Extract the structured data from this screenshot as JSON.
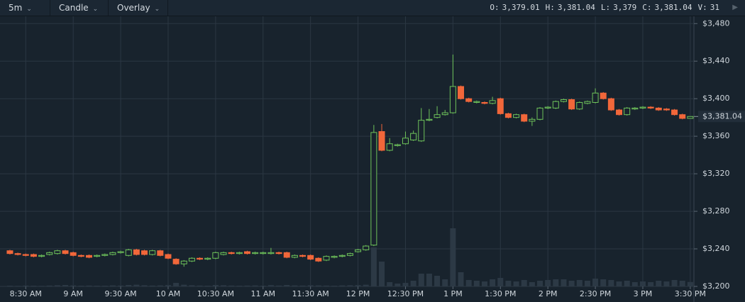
{
  "header": {
    "interval": "5m",
    "chart_type": "Candle",
    "overlay": "Overlay",
    "stats": [
      {
        "label": "O:",
        "value": "3,379.01"
      },
      {
        "label": "H:",
        "value": "3,381.04"
      },
      {
        "label": "L:",
        "value": "3,379"
      },
      {
        "label": "C:",
        "value": "3,381.04"
      },
      {
        "label": "V:",
        "value": "31"
      }
    ]
  },
  "chart_data": {
    "type": "candlestick",
    "categories": [
      null,
      null,
      "8:30 AM",
      null,
      null,
      null,
      null,
      null,
      "9 AM",
      null,
      null,
      null,
      null,
      null,
      "9:30 AM",
      null,
      null,
      null,
      null,
      null,
      "10 AM",
      null,
      null,
      null,
      null,
      null,
      "10:30 AM",
      null,
      null,
      null,
      null,
      null,
      "11 AM",
      null,
      null,
      null,
      null,
      null,
      "11:30 AM",
      null,
      null,
      null,
      null,
      null,
      "12 PM",
      null,
      null,
      null,
      null,
      null,
      "12:30 PM",
      null,
      null,
      null,
      null,
      null,
      "1 PM",
      null,
      null,
      null,
      null,
      null,
      "1:30 PM",
      null,
      null,
      null,
      null,
      null,
      "2 PM",
      null,
      null,
      null,
      null,
      null,
      "2:30 PM",
      null,
      null,
      null,
      null,
      null,
      "3 PM",
      null,
      null,
      null,
      null,
      null,
      "3:30 PM"
    ],
    "open": [
      3238,
      3235,
      3234,
      3234,
      3232,
      3234,
      3235,
      3238,
      3236,
      3233,
      3233,
      3232,
      3233,
      3234,
      3236,
      3233,
      3239,
      3238,
      3234,
      3238,
      3234,
      3229,
      3224,
      3227,
      3230,
      3229,
      3230,
      3234,
      3236,
      3235,
      3237,
      3235,
      3235,
      3235,
      3236,
      3236,
      3231,
      3233,
      3233,
      3230,
      3228,
      3231,
      3232,
      3233,
      3237,
      3239,
      3244,
      3365,
      3345,
      3350,
      3352,
      3356,
      3355,
      3377,
      3380,
      3383,
      3385,
      3413,
      3400,
      3396,
      3396,
      3395,
      3400,
      3384,
      3380,
      3383,
      3376,
      3378,
      3390,
      3390,
      3397,
      3399,
      3389,
      3395,
      3396,
      3406,
      3400,
      3388,
      3383,
      3389,
      3390,
      3391,
      3390,
      3389,
      3388,
      3383,
      3379.01
    ],
    "high": [
      3239,
      3236,
      3235,
      3235,
      3234,
      3237,
      3239,
      3239,
      3237,
      3234,
      3234,
      3234,
      3235,
      3237,
      3238,
      3240,
      3240,
      3239,
      3239,
      3239,
      3235,
      3230,
      3228,
      3231,
      3231,
      3231,
      3237,
      3237,
      3237,
      3237,
      3238,
      3237,
      3237,
      3241,
      3237,
      3237,
      3234,
      3234,
      3234,
      3231,
      3233,
      3233,
      3234,
      3236,
      3240,
      3244,
      3372,
      3373,
      3358,
      3352,
      3365,
      3366,
      3390,
      3389,
      3392,
      3388,
      3447,
      3414,
      3401,
      3398,
      3397,
      3402,
      3401,
      3385,
      3384,
      3384,
      3380,
      3391,
      3392,
      3398,
      3400,
      3400,
      3397,
      3398,
      3411,
      3407,
      3401,
      3389,
      3391,
      3391,
      3392,
      3392,
      3391,
      3390,
      3389,
      3384,
      3381.04
    ],
    "low": [
      3234,
      3233,
      3232,
      3231,
      3231,
      3233,
      3234,
      3234,
      3232,
      3231,
      3230,
      3231,
      3232,
      3233,
      3235,
      3232,
      3233,
      3233,
      3233,
      3232,
      3229,
      3223,
      3221,
      3226,
      3228,
      3228,
      3229,
      3233,
      3234,
      3234,
      3234,
      3234,
      3234,
      3234,
      3234,
      3230,
      3230,
      3231,
      3228,
      3226,
      3227,
      3230,
      3231,
      3232,
      3236,
      3238,
      3243,
      3344,
      3344,
      3349,
      3351,
      3355,
      3354,
      3376,
      3379,
      3382,
      3384,
      3399,
      3396,
      3395,
      3394,
      3394,
      3383,
      3379,
      3379,
      3375,
      3371,
      3377,
      3389,
      3389,
      3396,
      3388,
      3388,
      3394,
      3395,
      3399,
      3387,
      3382,
      3382,
      3388,
      3389,
      3389,
      3387,
      3387,
      3382,
      3378,
      3379
    ],
    "close": [
      3235,
      3234,
      3233,
      3232,
      3233,
      3236,
      3238,
      3235,
      3233,
      3232,
      3231,
      3233,
      3234,
      3236,
      3237,
      3239,
      3234,
      3234,
      3238,
      3233,
      3230,
      3224,
      3227,
      3230,
      3229,
      3230,
      3236,
      3236,
      3235,
      3236,
      3235,
      3236,
      3236,
      3236,
      3235,
      3231,
      3233,
      3232,
      3229,
      3227,
      3232,
      3232,
      3233,
      3235,
      3239,
      3243,
      3364,
      3345,
      3352,
      3351,
      3358,
      3363,
      3377,
      3378,
      3383,
      3385,
      3413,
      3400,
      3397,
      3397,
      3395,
      3398,
      3384,
      3380,
      3383,
      3376,
      3378,
      3390,
      3391,
      3397,
      3399,
      3389,
      3396,
      3397,
      3406,
      3400,
      3388,
      3383,
      3390,
      3390,
      3391,
      3390,
      3388,
      3388,
      3383,
      3379,
      3381.04
    ],
    "volume": [
      5,
      4,
      6,
      5,
      4,
      6,
      8,
      10,
      7,
      5,
      6,
      5,
      5,
      7,
      6,
      10,
      12,
      8,
      6,
      7,
      9,
      25,
      12,
      8,
      6,
      5,
      10,
      8,
      6,
      5,
      6,
      7,
      5,
      9,
      6,
      10,
      7,
      6,
      8,
      7,
      6,
      5,
      7,
      8,
      9,
      12,
      275,
      175,
      30,
      20,
      25,
      40,
      90,
      90,
      75,
      50,
      410,
      100,
      45,
      40,
      35,
      50,
      60,
      40,
      35,
      45,
      30,
      40,
      45,
      50,
      50,
      40,
      45,
      40,
      55,
      50,
      45,
      35,
      40,
      30,
      35,
      30,
      40,
      35,
      45,
      40,
      31
    ],
    "vlim": [
      0,
      1900
    ],
    "ylim": [
      3200,
      3487
    ],
    "yticks": [
      {
        "value": 3200,
        "label": "$3,200"
      },
      {
        "value": 3240,
        "label": "$3,240"
      },
      {
        "value": 3280,
        "label": "$3,280"
      },
      {
        "value": 3320,
        "label": "$3,320"
      },
      {
        "value": 3360,
        "label": "$3,360"
      },
      {
        "value": 3400,
        "label": "$3,400"
      },
      {
        "value": 3440,
        "label": "$3,440"
      },
      {
        "value": 3480,
        "label": "$3,480"
      }
    ],
    "last_price": {
      "value": 3381.04,
      "label": "$3,381.04"
    },
    "up_color": "#6ec25a",
    "down_color": "#f1673a",
    "volume_color": "#2c3945",
    "grid": true
  }
}
